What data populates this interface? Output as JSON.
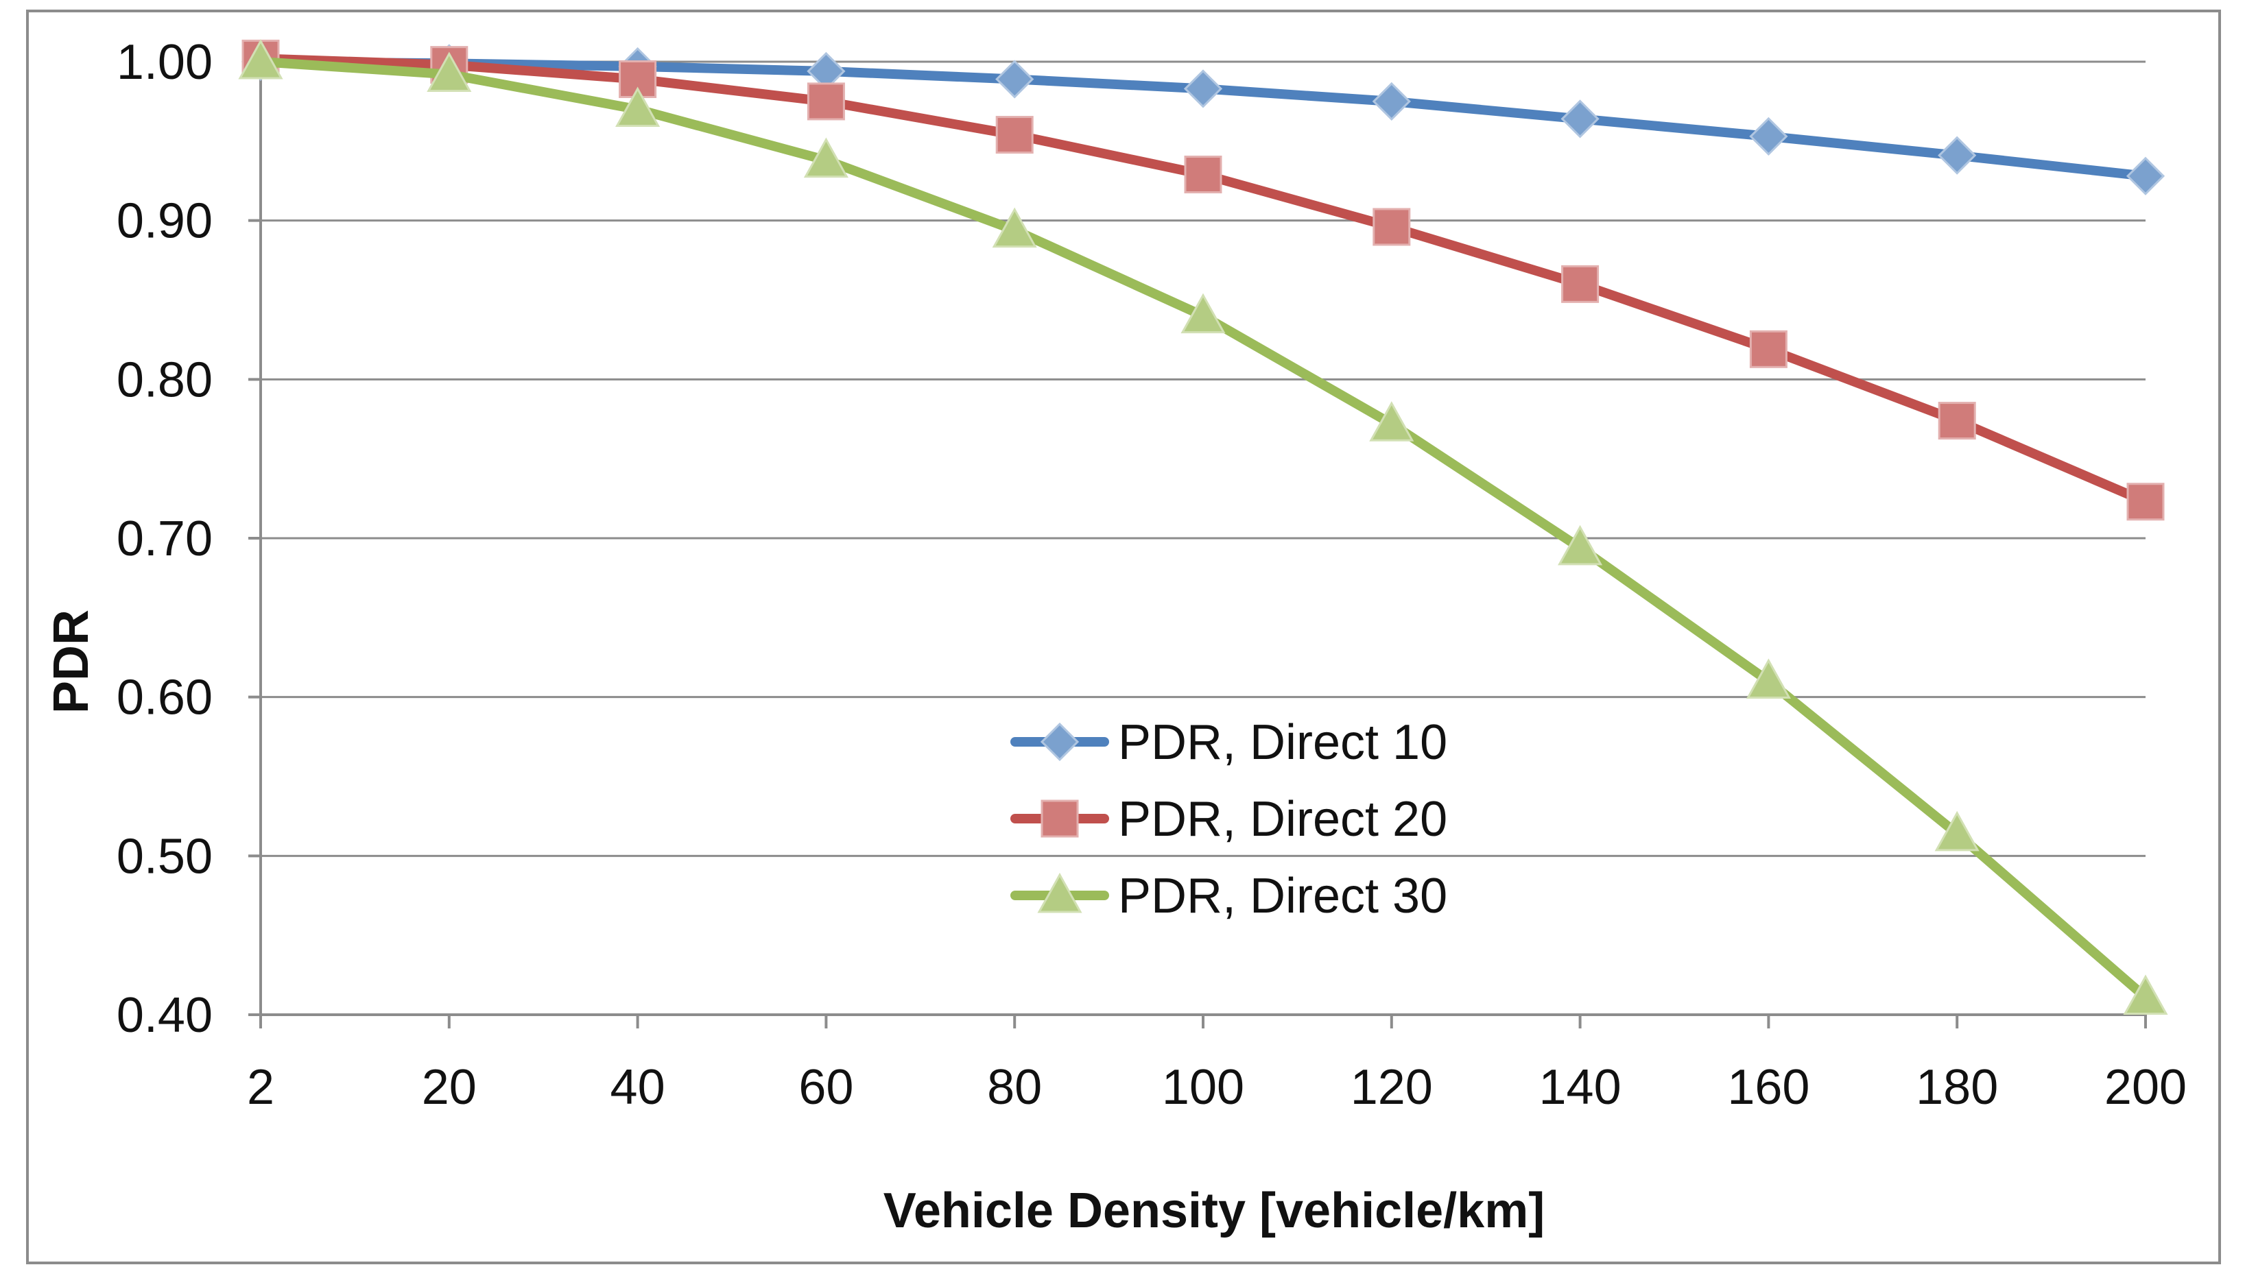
{
  "chart_data": {
    "type": "line",
    "title": "",
    "xlabel": "Vehicle Density [vehicle/km]",
    "ylabel": "PDR",
    "categories": [
      "2",
      "20",
      "40",
      "60",
      "80",
      "100",
      "120",
      "140",
      "160",
      "180",
      "200"
    ],
    "ylim": [
      0.4,
      1.0
    ],
    "yticks": [
      "0.40",
      "0.50",
      "0.60",
      "0.70",
      "0.80",
      "0.90",
      "1.00"
    ],
    "grid": "horizontal",
    "legend_position": "center",
    "series": [
      {
        "name": "PDR, Direct 10",
        "marker": "diamond",
        "color": "#4F81BD",
        "values": [
          1.0,
          0.999,
          0.997,
          0.994,
          0.989,
          0.983,
          0.975,
          0.964,
          0.953,
          0.941,
          0.928
        ]
      },
      {
        "name": "PDR, Direct 20",
        "marker": "square",
        "color": "#C0504D",
        "values": [
          1.002,
          0.998,
          0.989,
          0.975,
          0.954,
          0.929,
          0.896,
          0.86,
          0.819,
          0.774,
          0.723
        ]
      },
      {
        "name": "PDR, Direct 30",
        "marker": "triangle",
        "color": "#9BBB59",
        "values": [
          1.0,
          0.992,
          0.97,
          0.938,
          0.894,
          0.84,
          0.772,
          0.694,
          0.61,
          0.514,
          0.411
        ]
      }
    ]
  }
}
